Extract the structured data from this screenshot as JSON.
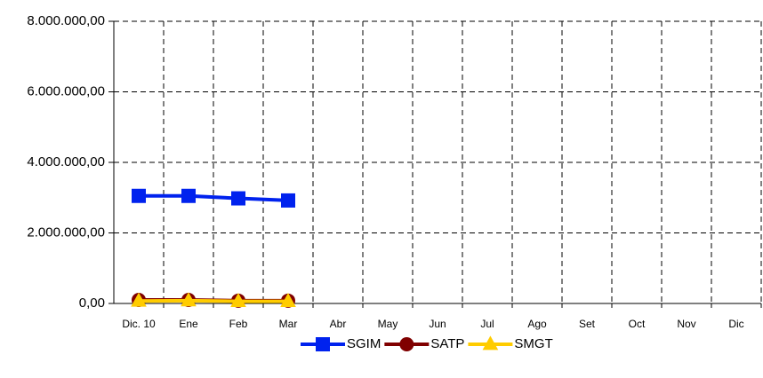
{
  "chart_data": {
    "type": "line",
    "categories": [
      "Dic. 10",
      "Ene",
      "Feb",
      "Mar",
      "Abr",
      "May",
      "Jun",
      "Jul",
      "Ago",
      "Set",
      "Oct",
      "Nov",
      "Dic"
    ],
    "series": [
      {
        "name": "SGIM",
        "color": "#0022ee",
        "marker": "square",
        "values": [
          3050000,
          3050000,
          2980000,
          2920000,
          null,
          null,
          null,
          null,
          null,
          null,
          null,
          null,
          null
        ]
      },
      {
        "name": "SATP",
        "color": "#800000",
        "marker": "circle",
        "values": [
          100000,
          100000,
          80000,
          80000,
          null,
          null,
          null,
          null,
          null,
          null,
          null,
          null,
          null
        ]
      },
      {
        "name": "SMGT",
        "color": "#ffcc00",
        "marker": "triangle",
        "values": [
          70000,
          80000,
          60000,
          60000,
          null,
          null,
          null,
          null,
          null,
          null,
          null,
          null,
          null
        ]
      }
    ],
    "ylim": [
      0,
      8000000
    ],
    "yticks": [
      {
        "value": 0,
        "label": "0,00"
      },
      {
        "value": 2000000,
        "label": "2.000.000,00"
      },
      {
        "value": 4000000,
        "label": "4.000.000,00"
      },
      {
        "value": 6000000,
        "label": "6.000.000,00"
      },
      {
        "value": 8000000,
        "label": "8.000.000,00"
      }
    ],
    "grid": true,
    "legend": "bottom"
  }
}
